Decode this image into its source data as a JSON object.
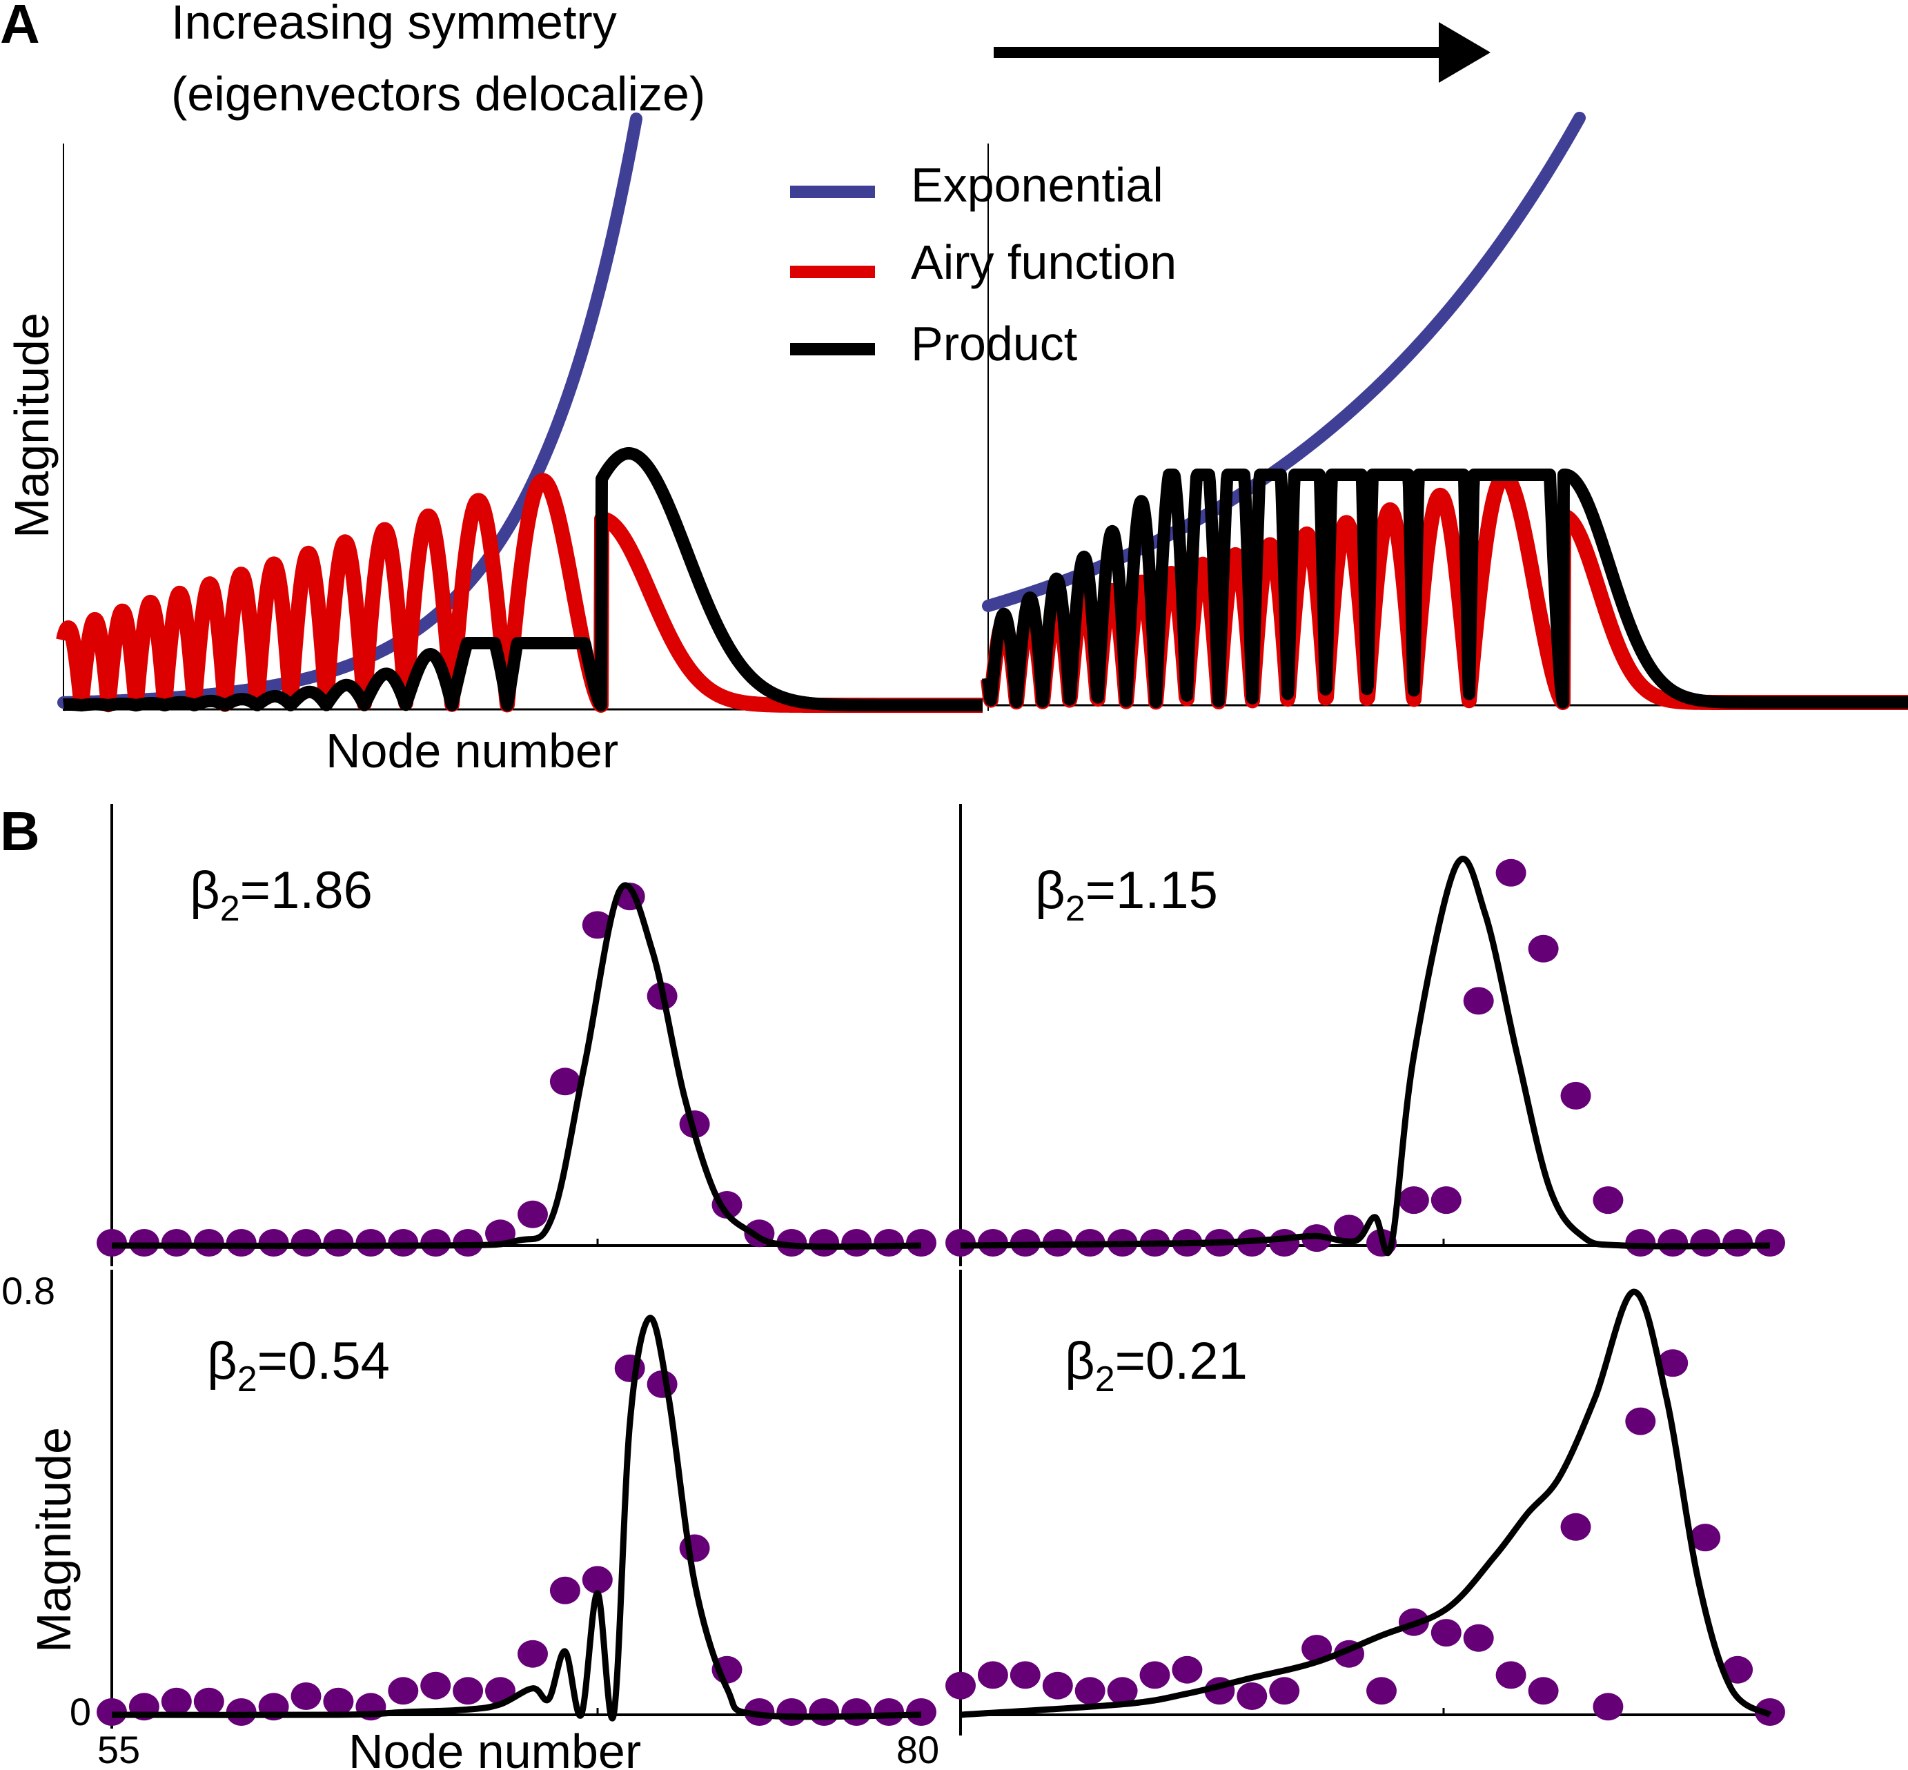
{
  "colors": {
    "exponential": "#3f3f96",
    "airy": "#dd0000",
    "product": "#000000",
    "simulation": "#660077",
    "axis": "#000000",
    "background": "#ffffff"
  },
  "panel_a": {
    "letter": "A",
    "header_line1": "Increasing symmetry",
    "header_line2": "(eigenvectors delocalize)",
    "arrow": "increasing-symmetry-arrow",
    "ylabel": "Magnitude",
    "xlabel": "Node number",
    "legend": {
      "placement": "top-center",
      "items": [
        {
          "label": "Exponential",
          "color": "#3f3f96"
        },
        {
          "label": "Airy function",
          "color": "#dd0000"
        },
        {
          "label": "Product",
          "color": "#000000"
        }
      ]
    }
  },
  "panel_b": {
    "letter": "B",
    "ylabel": "Magnitude",
    "xlabel": "Node number",
    "ytick_top": "0.8",
    "ytick_bottom": "0",
    "xtick_left": "55",
    "xtick_right": "80",
    "beta_symbol": "β",
    "beta_sub": "2",
    "subplots": [
      {
        "beta_value": "=1.86"
      },
      {
        "beta_value": "=1.15"
      },
      {
        "beta_value": "=0.54"
      },
      {
        "beta_value": "=0.21"
      }
    ]
  },
  "chart_data": [
    {
      "type": "line",
      "panel": "A-left",
      "xlabel": "Node number",
      "ylabel": "Magnitude",
      "series": [
        {
          "name": "Exponential",
          "x": [
            0,
            0.1,
            0.2,
            0.3,
            0.4,
            0.5,
            0.6,
            0.7
          ],
          "values": [
            0.02,
            0.04,
            0.08,
            0.14,
            0.24,
            0.41,
            0.68,
            1.15
          ]
        },
        {
          "name": "Airy function",
          "x": [
            0.0,
            0.42,
            0.53,
            0.62
          ],
          "values": [
            0.19,
            0.28,
            0.34,
            0.0
          ]
        },
        {
          "name": "Product",
          "x": [
            0.0,
            0.4,
            0.48,
            0.55,
            0.6,
            0.65,
            0.7,
            0.8
          ],
          "values": [
            0.0,
            0.0,
            0.08,
            0.45,
            0.25,
            0.07,
            0.01,
            0.0
          ]
        }
      ]
    },
    {
      "type": "line",
      "panel": "A-right",
      "xlabel": "",
      "ylabel": "",
      "series": [
        {
          "name": "Exponential",
          "x": [
            0,
            0.1,
            0.2,
            0.3,
            0.4,
            0.5,
            0.6,
            0.7
          ],
          "values": [
            0.19,
            0.23,
            0.29,
            0.37,
            0.47,
            0.6,
            0.77,
            1.0
          ]
        },
        {
          "name": "Airy function",
          "x": [
            0.0,
            0.53,
            0.62,
            0.7
          ],
          "values": [
            0.19,
            0.27,
            0.34,
            0.0
          ]
        },
        {
          "name": "Product",
          "x": [
            0.0,
            0.4,
            0.53,
            0.62,
            0.7,
            0.8
          ],
          "values": [
            0.04,
            0.14,
            0.24,
            0.4,
            0.02,
            0.0
          ]
        }
      ]
    },
    {
      "type": "scatter",
      "panel": "B",
      "xlabel": "Node number",
      "ylabel": "Magnitude",
      "xlim": [
        55,
        80
      ],
      "ylim": [
        0,
        0.8
      ],
      "subplots": [
        {
          "label": "β2=1.86",
          "points": [
            [
              55,
              0
            ],
            [
              56,
              0
            ],
            [
              57,
              0
            ],
            [
              58,
              0
            ],
            [
              59,
              0
            ],
            [
              60,
              0
            ],
            [
              61,
              0
            ],
            [
              62,
              0
            ],
            [
              63,
              0
            ],
            [
              64,
              0
            ],
            [
              65,
              0
            ],
            [
              66,
              0
            ],
            [
              67,
              0.02
            ],
            [
              68,
              0.06
            ],
            [
              69,
              0.34
            ],
            [
              70,
              0.67
            ],
            [
              71,
              0.73
            ],
            [
              72,
              0.52
            ],
            [
              73,
              0.25
            ],
            [
              74,
              0.08
            ],
            [
              75,
              0.02
            ],
            [
              76,
              0
            ],
            [
              77,
              0
            ],
            [
              78,
              0
            ],
            [
              79,
              0
            ],
            [
              80,
              0
            ]
          ],
          "curve": [
            [
              55,
              0
            ],
            [
              65,
              0
            ],
            [
              67.5,
              0.01
            ],
            [
              68.6,
              0.06
            ],
            [
              69.6,
              0.38
            ],
            [
              70.7,
              0.75
            ],
            [
              71.7,
              0.62
            ],
            [
              72.7,
              0.31
            ],
            [
              73.7,
              0.1
            ],
            [
              74.7,
              0.03
            ],
            [
              76,
              0
            ],
            [
              80,
              0
            ]
          ]
        },
        {
          "label": "β2=1.15",
          "points": [
            [
              55,
              0
            ],
            [
              56,
              0
            ],
            [
              57,
              0
            ],
            [
              58,
              0
            ],
            [
              59,
              0
            ],
            [
              60,
              0
            ],
            [
              61,
              0
            ],
            [
              62,
              0
            ],
            [
              63,
              0
            ],
            [
              64,
              0
            ],
            [
              65,
              0
            ],
            [
              66,
              0.01
            ],
            [
              67,
              0.03
            ],
            [
              68,
              0
            ],
            [
              69,
              0.09
            ],
            [
              70,
              0.09
            ],
            [
              71,
              0.51
            ],
            [
              72,
              0.78
            ],
            [
              73,
              0.62
            ],
            [
              74,
              0.31
            ],
            [
              75,
              0.09
            ],
            [
              76,
              0
            ],
            [
              77,
              0
            ],
            [
              78,
              0
            ],
            [
              79,
              0
            ],
            [
              80,
              0
            ]
          ],
          "curve": [
            [
              55,
              0
            ],
            [
              62,
              0.005
            ],
            [
              64,
              0.01
            ],
            [
              65,
              0.015
            ],
            [
              66,
              0.02
            ],
            [
              67.2,
              0.01
            ],
            [
              67.8,
              0.06
            ],
            [
              68.3,
              0.0
            ],
            [
              69,
              0.4
            ],
            [
              70.3,
              0.8
            ],
            [
              71.2,
              0.7
            ],
            [
              72.2,
              0.4
            ],
            [
              73.2,
              0.12
            ],
            [
              74.2,
              0.02
            ],
            [
              75.5,
              0
            ],
            [
              80,
              0
            ]
          ]
        },
        {
          "label": "β2=0.54",
          "points": [
            [
              55,
              0
            ],
            [
              56,
              0.01
            ],
            [
              57,
              0.02
            ],
            [
              58,
              0.02
            ],
            [
              59,
              0
            ],
            [
              60,
              0.01
            ],
            [
              61,
              0.03
            ],
            [
              62,
              0.02
            ],
            [
              63,
              0.01
            ],
            [
              64,
              0.04
            ],
            [
              65,
              0.05
            ],
            [
              66,
              0.04
            ],
            [
              67,
              0.04
            ],
            [
              68,
              0.11
            ],
            [
              69,
              0.23
            ],
            [
              70,
              0.25
            ],
            [
              71,
              0.65
            ],
            [
              72,
              0.62
            ],
            [
              73,
              0.31
            ],
            [
              74,
              0.08
            ],
            [
              75,
              0
            ],
            [
              76,
              0
            ],
            [
              77,
              0
            ],
            [
              78,
              0
            ],
            [
              79,
              0
            ],
            [
              80,
              0
            ]
          ],
          "curve": [
            [
              55,
              0
            ],
            [
              62,
              0
            ],
            [
              64,
              0.005
            ],
            [
              66,
              0.01
            ],
            [
              67,
              0.02
            ],
            [
              68,
              0.05
            ],
            [
              68.5,
              0.03
            ],
            [
              69,
              0.12
            ],
            [
              69.5,
              0.0
            ],
            [
              70,
              0.23
            ],
            [
              70.5,
              0.0
            ],
            [
              71,
              0.55
            ],
            [
              71.6,
              0.75
            ],
            [
              72.2,
              0.6
            ],
            [
              73,
              0.25
            ],
            [
              74,
              0.05
            ],
            [
              75,
              0
            ],
            [
              80,
              0
            ]
          ]
        },
        {
          "label": "β2=0.21",
          "points": [
            [
              55,
              0.05
            ],
            [
              56,
              0.07
            ],
            [
              57,
              0.07
            ],
            [
              58,
              0.05
            ],
            [
              59,
              0.04
            ],
            [
              60,
              0.04
            ],
            [
              61,
              0.07
            ],
            [
              62,
              0.08
            ],
            [
              63,
              0.04
            ],
            [
              64,
              0.03
            ],
            [
              65,
              0.04
            ],
            [
              66,
              0.12
            ],
            [
              67,
              0.11
            ],
            [
              68,
              0.04
            ],
            [
              69,
              0.17
            ],
            [
              70,
              0.15
            ],
            [
              71,
              0.14
            ],
            [
              72,
              0.07
            ],
            [
              73,
              0.04
            ],
            [
              74,
              0.35
            ],
            [
              75,
              0.01
            ],
            [
              76,
              0.55
            ],
            [
              77,
              0.66
            ],
            [
              78,
              0.33
            ],
            [
              79,
              0.08
            ],
            [
              80,
              0
            ]
          ],
          "curve": [
            [
              55,
              0
            ],
            [
              60,
              0.02
            ],
            [
              62,
              0.04
            ],
            [
              64,
              0.07
            ],
            [
              66,
              0.1
            ],
            [
              68,
              0.15
            ],
            [
              70,
              0.2
            ],
            [
              71.5,
              0.3
            ],
            [
              72.5,
              0.38
            ],
            [
              73.5,
              0.45
            ],
            [
              74.6,
              0.6
            ],
            [
              75.8,
              0.8
            ],
            [
              76.8,
              0.6
            ],
            [
              77.8,
              0.25
            ],
            [
              78.8,
              0.05
            ],
            [
              80,
              0
            ]
          ]
        }
      ]
    }
  ]
}
